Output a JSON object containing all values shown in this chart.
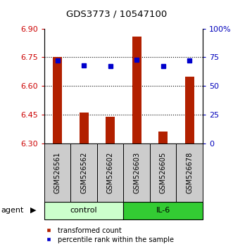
{
  "title": "GDS3773 / 10547100",
  "samples": [
    "GSM526561",
    "GSM526562",
    "GSM526602",
    "GSM526603",
    "GSM526605",
    "GSM526678"
  ],
  "groups": [
    "control",
    "control",
    "control",
    "IL-6",
    "IL-6",
    "IL-6"
  ],
  "transformed_counts": [
    6.75,
    6.46,
    6.44,
    6.86,
    6.36,
    6.65
  ],
  "percentile_ranks": [
    72,
    68,
    67,
    73,
    67,
    72
  ],
  "ylim_left": [
    6.3,
    6.9
  ],
  "yticks_left": [
    6.3,
    6.45,
    6.6,
    6.75,
    6.9
  ],
  "yticks_right": [
    0,
    25,
    50,
    75,
    100
  ],
  "bar_color": "#b22000",
  "dot_color": "#0000cc",
  "control_color": "#ccffcc",
  "il6_color": "#33cc33",
  "label_color_left": "#cc0000",
  "label_color_right": "#0000bb",
  "sample_box_color": "#cccccc",
  "legend_bar_label": "transformed count",
  "legend_dot_label": "percentile rank within the sample",
  "group_label": "agent",
  "figwidth": 3.31,
  "figheight": 3.54,
  "dpi": 100
}
